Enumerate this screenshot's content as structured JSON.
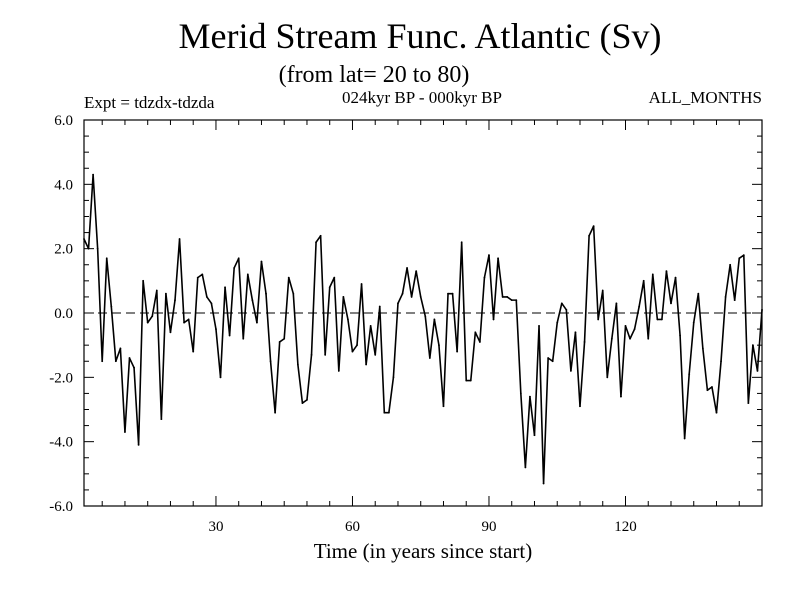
{
  "chart_data": {
    "type": "line",
    "title": "Merid Stream Func. Atlantic (Sv)",
    "subtitle": "(from lat= 20 to 80)",
    "expt_label": "Expt = tdzdx-tdzda",
    "period_label": "024kyr BP - 000kyr BP",
    "months_label": "ALL_MONTHS",
    "xlabel": "Time (in years since start)",
    "ylabel": "",
    "xlim": [
      1,
      150
    ],
    "ylim": [
      -6.0,
      6.0
    ],
    "x_ticks": [
      30,
      60,
      90,
      120
    ],
    "y_ticks": [
      -6.0,
      -4.0,
      -2.0,
      0.0,
      2.0,
      4.0,
      6.0
    ],
    "y_tick_labels": [
      "-6.0",
      "-4.0",
      "-2.0",
      "0.0",
      "2.0",
      "4.0",
      "6.0"
    ],
    "reference_line": 0.0,
    "series": [
      {
        "name": "Merid Stream Func. Atlantic",
        "x_start": 1,
        "x_step": 1,
        "values": [
          2.3,
          2.0,
          4.3,
          2.0,
          -1.5,
          1.7,
          0.2,
          -1.5,
          -1.1,
          -3.7,
          -1.4,
          -1.7,
          -4.1,
          1.0,
          -0.3,
          -0.1,
          0.7,
          -3.3,
          0.6,
          -0.6,
          0.4,
          2.3,
          -0.3,
          -0.2,
          -1.2,
          1.1,
          1.2,
          0.5,
          0.3,
          -0.5,
          -2.0,
          0.8,
          -0.7,
          1.4,
          1.7,
          -0.8,
          1.2,
          0.4,
          -0.3,
          1.6,
          0.6,
          -1.5,
          -3.1,
          -0.9,
          -0.8,
          1.1,
          0.6,
          -1.6,
          -2.8,
          -2.7,
          -1.3,
          2.2,
          2.4,
          -1.3,
          0.8,
          1.1,
          -1.8,
          0.5,
          -0.2,
          -1.2,
          -1.0,
          0.9,
          -1.6,
          -0.4,
          -1.3,
          0.2,
          -3.1,
          -3.1,
          -2.0,
          0.3,
          0.6,
          1.4,
          0.5,
          1.3,
          0.5,
          -0.1,
          -1.4,
          -0.2,
          -1.0,
          -2.9,
          0.6,
          0.6,
          -1.2,
          2.2,
          -2.1,
          -2.1,
          -0.6,
          -0.9,
          1.1,
          1.8,
          -0.2,
          1.7,
          0.5,
          0.5,
          0.4,
          0.4,
          -2.5,
          -4.8,
          -2.6,
          -3.8,
          -0.4,
          -5.3,
          -1.4,
          -1.5,
          -0.3,
          0.3,
          0.1,
          -1.8,
          -0.6,
          -2.9,
          -0.9,
          2.4,
          2.7,
          -0.2,
          0.7,
          -2.0,
          -0.8,
          0.3,
          -2.6,
          -0.4,
          -0.8,
          -0.5,
          0.2,
          1.0,
          -0.8,
          1.2,
          -0.2,
          -0.2,
          1.3,
          0.3,
          1.1,
          -0.7,
          -3.9,
          -1.9,
          -0.3,
          0.6,
          -1.1,
          -2.4,
          -2.3,
          -3.1,
          -1.5,
          0.5,
          1.5,
          0.4,
          1.7,
          1.8,
          -2.8,
          -1.0,
          -1.8,
          0.1
        ]
      }
    ]
  }
}
